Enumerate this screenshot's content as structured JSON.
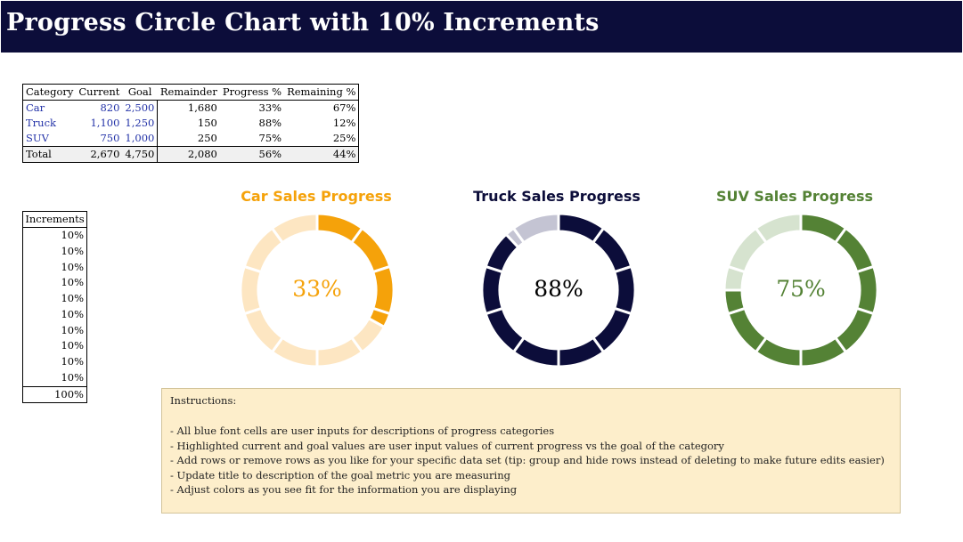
{
  "header": {
    "title": "Progress Circle Chart with 10% Increments"
  },
  "table": {
    "columns": [
      "Category",
      "Current",
      "Goal",
      "Remainder",
      "Progress %",
      "Remaining %"
    ],
    "rows": [
      {
        "category": "Car",
        "current": "820",
        "goal": "2,500",
        "remainder": "1,680",
        "progress": "33%",
        "remaining": "67%"
      },
      {
        "category": "Truck",
        "current": "1,100",
        "goal": "1,250",
        "remainder": "150",
        "progress": "88%",
        "remaining": "12%"
      },
      {
        "category": "SUV",
        "current": "750",
        "goal": "1,000",
        "remainder": "250",
        "progress": "75%",
        "remaining": "25%"
      }
    ],
    "total": {
      "category": "Total",
      "current": "2,670",
      "goal": "4,750",
      "remainder": "2,080",
      "progress": "56%",
      "remaining": "44%"
    }
  },
  "increments": {
    "header": "Increments",
    "values": [
      "10%",
      "10%",
      "10%",
      "10%",
      "10%",
      "10%",
      "10%",
      "10%",
      "10%",
      "10%"
    ],
    "total": "100%"
  },
  "chart_data": [
    {
      "type": "pie",
      "title": "Car Sales Progress",
      "center_label": "33%",
      "progress": 0.33,
      "segments": 10,
      "colors": {
        "progress": "#f5a20a",
        "remaining": "#fde6c2",
        "title": "#f5a20a",
        "label": "#f5a20a"
      }
    },
    {
      "type": "pie",
      "title": "Truck Sales Progress",
      "center_label": "88%",
      "progress": 0.88,
      "segments": 10,
      "colors": {
        "progress": "#0c0d3a",
        "remaining": "#c4c4d3",
        "title": "#0c0d3a",
        "label": "#000000"
      }
    },
    {
      "type": "pie",
      "title": "SUV Sales Progress",
      "center_label": "75%",
      "progress": 0.75,
      "segments": 10,
      "colors": {
        "progress": "#548235",
        "remaining": "#d6e3cf",
        "title": "#548235",
        "label": "#548235"
      }
    }
  ],
  "instructions": {
    "title": "Instructions:",
    "items": [
      "- All blue font cells are user inputs for descriptions of progress categories",
      "- Highlighted current and goal values are user input values of current progress vs the goal of the category",
      "- Add rows or remove  rows as you like for your specific data set (tip:  group and hide rows instead of deleting to make future edits easier)",
      "- Update title to description of the goal metric you are measuring",
      "- Adjust colors as you see fit for the information you are displaying"
    ]
  }
}
